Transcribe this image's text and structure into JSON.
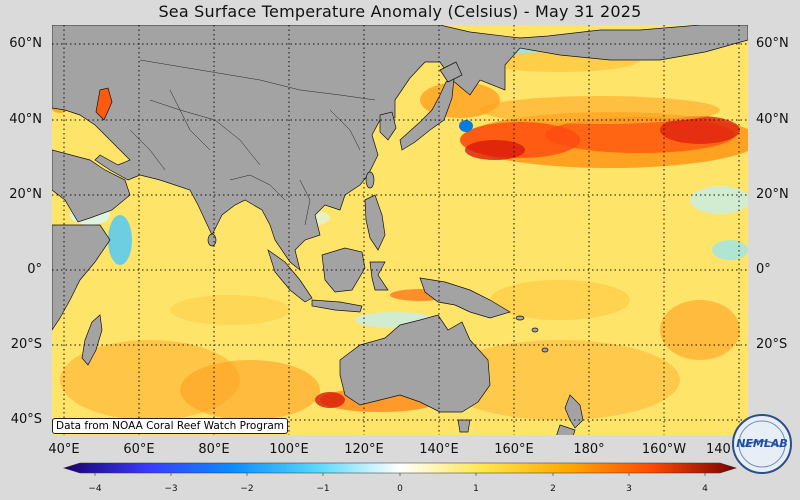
{
  "title": "Sea Surface Temperature Anomaly (Celsius) - May 31 2025",
  "source_note": "Data from NOAA Coral Reef Watch Program",
  "logo_text": "NEMLAB",
  "lat_labels": [
    "60°N",
    "40°N",
    "20°N",
    "0°",
    "20°S",
    "40°S"
  ],
  "lon_labels": [
    "40°E",
    "60°E",
    "80°E",
    "100°E",
    "120°E",
    "140°E",
    "160°E",
    "180°",
    "160°W",
    "140°W"
  ],
  "colorbar": {
    "min": -4,
    "max": 4,
    "ticks": [
      "−4",
      "−3",
      "−2",
      "−1",
      "0",
      "1",
      "2",
      "3",
      "4"
    ],
    "colors": [
      "#1a006b",
      "#3a3aff",
      "#0a8cff",
      "#55d8ff",
      "#ffffff",
      "#ffe64a",
      "#ffa800",
      "#ff4a00",
      "#c80000",
      "#7a0000"
    ]
  },
  "colors": {
    "land": "#a3a3a3",
    "background": "#dadada",
    "ocean_base": "#ffe46a"
  }
}
